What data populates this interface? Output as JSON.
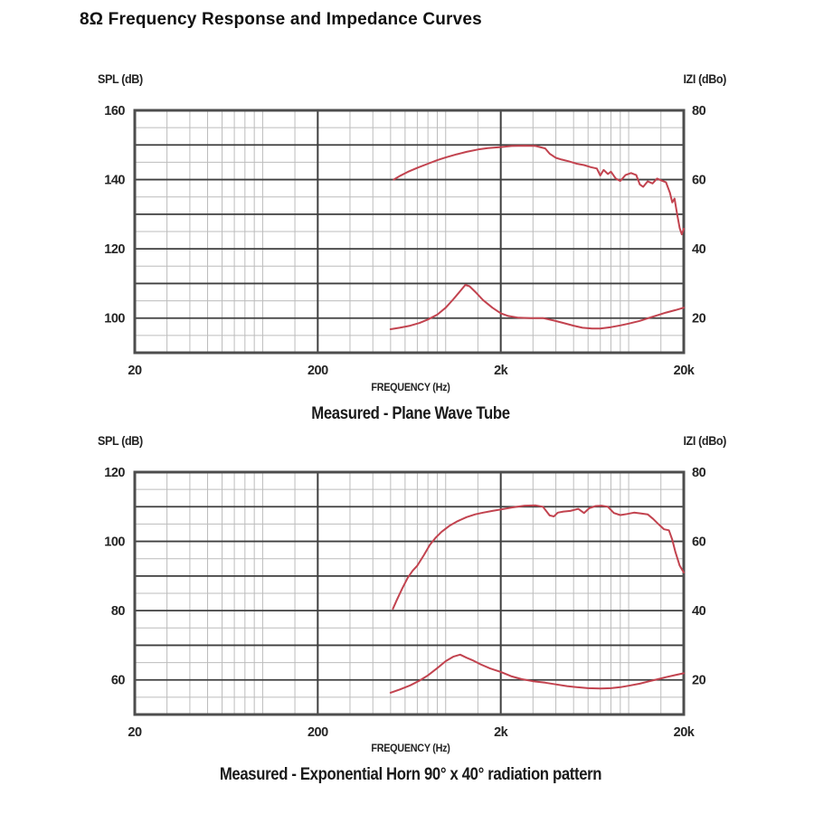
{
  "title": "8Ω Frequency Response and Impedance Curves",
  "colors": {
    "curve": "#c2434f",
    "grid_major": "#3f3f3f",
    "grid_minor": "#bcbcbc",
    "border": "#4d4d4d",
    "text": "#252525"
  },
  "chart_data": [
    {
      "type": "line",
      "id": "plane-wave-tube",
      "caption": "Measured - Plane Wave Tube",
      "xlabel": "FREQUENCY (Hz)",
      "y_left_label": "SPL (dB)",
      "y_right_label": "IZI (dBo)",
      "x_axis": {
        "scale": "log",
        "min": 20,
        "max": 20000,
        "major_ticks": [
          20,
          200,
          2000,
          20000
        ],
        "tick_labels": [
          "20",
          "200",
          "2k",
          "20k"
        ],
        "minor_multipliers": [
          1.5,
          2,
          2.5,
          3,
          3.5,
          4,
          4.5,
          5,
          7.5
        ]
      },
      "y_left": {
        "min": 90,
        "max": 160,
        "major_step": 10,
        "minor_step": 5,
        "labels": [
          160,
          140,
          120,
          100
        ]
      },
      "y_right": {
        "min": 10,
        "max": 80,
        "labels": [
          80,
          60,
          40,
          20
        ]
      },
      "series": [
        {
          "name": "SPL frequency response",
          "axis": "left",
          "points": [
            [
              520,
              140
            ],
            [
              560,
              141
            ],
            [
              620,
              142.2
            ],
            [
              700,
              143.4
            ],
            [
              800,
              144.6
            ],
            [
              900,
              145.6
            ],
            [
              1000,
              146.4
            ],
            [
              1150,
              147.3
            ],
            [
              1300,
              148
            ],
            [
              1500,
              148.7
            ],
            [
              1700,
              149.1
            ],
            [
              2000,
              149.4
            ],
            [
              2300,
              149.7
            ],
            [
              2700,
              149.8
            ],
            [
              3100,
              149.7
            ],
            [
              3500,
              149
            ],
            [
              3700,
              147.5
            ],
            [
              4000,
              146.3
            ],
            [
              4300,
              145.8
            ],
            [
              4700,
              145.3
            ],
            [
              5200,
              144.6
            ],
            [
              5700,
              144.2
            ],
            [
              6200,
              143.6
            ],
            [
              6700,
              143.2
            ],
            [
              7000,
              141.2
            ],
            [
              7300,
              142.8
            ],
            [
              7700,
              141.6
            ],
            [
              8000,
              142.3
            ],
            [
              8500,
              140.3
            ],
            [
              9000,
              139.6
            ],
            [
              9600,
              141.3
            ],
            [
              10300,
              141.9
            ],
            [
              11000,
              141.3
            ],
            [
              11500,
              138.6
            ],
            [
              12000,
              137.9
            ],
            [
              12700,
              139.5
            ],
            [
              13500,
              138.9
            ],
            [
              14300,
              140.3
            ],
            [
              15000,
              139.8
            ],
            [
              16000,
              139.2
            ],
            [
              16800,
              136.2
            ],
            [
              17300,
              133.4
            ],
            [
              17800,
              134.5
            ],
            [
              18400,
              130
            ],
            [
              19000,
              126
            ],
            [
              19500,
              124.2
            ],
            [
              20000,
              125.8
            ]
          ]
        },
        {
          "name": "Impedance |Z|",
          "axis": "right",
          "points": [
            [
              500,
              16.8
            ],
            [
              560,
              17.2
            ],
            [
              640,
              17.8
            ],
            [
              720,
              18.6
            ],
            [
              800,
              19.6
            ],
            [
              900,
              21
            ],
            [
              1000,
              23
            ],
            [
              1100,
              25.4
            ],
            [
              1200,
              27.8
            ],
            [
              1280,
              29.6
            ],
            [
              1350,
              29.2
            ],
            [
              1450,
              27.6
            ],
            [
              1600,
              25.2
            ],
            [
              1800,
              23
            ],
            [
              2000,
              21.4
            ],
            [
              2200,
              20.6
            ],
            [
              2500,
              20.1
            ],
            [
              2900,
              20
            ],
            [
              3400,
              20
            ],
            [
              3900,
              19.3
            ],
            [
              4400,
              18.6
            ],
            [
              5000,
              17.8
            ],
            [
              5600,
              17.2
            ],
            [
              6300,
              17
            ],
            [
              7000,
              17
            ],
            [
              8000,
              17.4
            ],
            [
              9000,
              17.9
            ],
            [
              10000,
              18.4
            ],
            [
              11500,
              19.2
            ],
            [
              13000,
              20.1
            ],
            [
              14500,
              20.9
            ],
            [
              16000,
              21.6
            ],
            [
              18000,
              22.3
            ],
            [
              20000,
              23
            ]
          ]
        }
      ]
    },
    {
      "type": "line",
      "id": "exponential-horn",
      "caption": "Measured - Exponential Horn 90° x 40° radiation pattern",
      "xlabel": "FREQUENCY (Hz)",
      "y_left_label": "SPL (dB)",
      "y_right_label": "IZI (dBo)",
      "x_axis": {
        "scale": "log",
        "min": 20,
        "max": 20000,
        "major_ticks": [
          20,
          200,
          2000,
          20000
        ],
        "tick_labels": [
          "20",
          "200",
          "2k",
          "20k"
        ],
        "minor_multipliers": [
          1.5,
          2,
          2.5,
          3,
          3.5,
          4,
          4.5,
          5,
          7.5
        ]
      },
      "y_left": {
        "min": 50,
        "max": 120,
        "major_step": 10,
        "minor_step": 5,
        "labels": [
          120,
          100,
          80,
          60
        ]
      },
      "y_right": {
        "min": 10,
        "max": 80,
        "labels": [
          80,
          60,
          40,
          20
        ]
      },
      "series": [
        {
          "name": "SPL frequency response",
          "axis": "left",
          "points": [
            [
              515,
              80.5
            ],
            [
              540,
              83
            ],
            [
              580,
              86.5
            ],
            [
              620,
              89.5
            ],
            [
              660,
              91.5
            ],
            [
              700,
              93
            ],
            [
              760,
              96
            ],
            [
              820,
              99
            ],
            [
              880,
              101
            ],
            [
              950,
              102.8
            ],
            [
              1050,
              104.5
            ],
            [
              1150,
              105.7
            ],
            [
              1300,
              107
            ],
            [
              1450,
              107.8
            ],
            [
              1600,
              108.3
            ],
            [
              1800,
              108.8
            ],
            [
              2000,
              109.2
            ],
            [
              2300,
              109.8
            ],
            [
              2700,
              110.3
            ],
            [
              3100,
              110.4
            ],
            [
              3400,
              110
            ],
            [
              3700,
              107.5
            ],
            [
              3900,
              107.2
            ],
            [
              4100,
              108.3
            ],
            [
              4400,
              108.6
            ],
            [
              4800,
              108.8
            ],
            [
              5300,
              109.4
            ],
            [
              5700,
              108.2
            ],
            [
              6100,
              109.6
            ],
            [
              6600,
              110.2
            ],
            [
              7100,
              110.3
            ],
            [
              7700,
              110
            ],
            [
              8300,
              108.2
            ],
            [
              9000,
              107.6
            ],
            [
              9800,
              107.9
            ],
            [
              10700,
              108.3
            ],
            [
              11600,
              108.1
            ],
            [
              12700,
              107.8
            ],
            [
              13600,
              106.5
            ],
            [
              14600,
              104.9
            ],
            [
              15600,
              103.5
            ],
            [
              16600,
              103.2
            ],
            [
              17300,
              100.5
            ],
            [
              18000,
              97
            ],
            [
              19000,
              93
            ],
            [
              20000,
              91
            ]
          ]
        },
        {
          "name": "Impedance |Z|",
          "axis": "right",
          "points": [
            [
              500,
              16.3
            ],
            [
              560,
              17.2
            ],
            [
              640,
              18.4
            ],
            [
              720,
              19.8
            ],
            [
              800,
              21.3
            ],
            [
              900,
              23.4
            ],
            [
              1000,
              25.4
            ],
            [
              1100,
              26.7
            ],
            [
              1200,
              27.3
            ],
            [
              1300,
              26.4
            ],
            [
              1400,
              25.7
            ],
            [
              1550,
              24.5
            ],
            [
              1750,
              23.3
            ],
            [
              2000,
              22.3
            ],
            [
              2300,
              21
            ],
            [
              2600,
              20.2
            ],
            [
              3000,
              19.6
            ],
            [
              3500,
              19.2
            ],
            [
              4000,
              18.7
            ],
            [
              4600,
              18.2
            ],
            [
              5200,
              17.9
            ],
            [
              6000,
              17.6
            ],
            [
              7000,
              17.5
            ],
            [
              8000,
              17.6
            ],
            [
              9000,
              17.9
            ],
            [
              10000,
              18.3
            ],
            [
              11500,
              18.9
            ],
            [
              13000,
              19.6
            ],
            [
              14500,
              20.2
            ],
            [
              16000,
              20.8
            ],
            [
              18000,
              21.4
            ],
            [
              20000,
              21.9
            ]
          ]
        }
      ]
    }
  ]
}
